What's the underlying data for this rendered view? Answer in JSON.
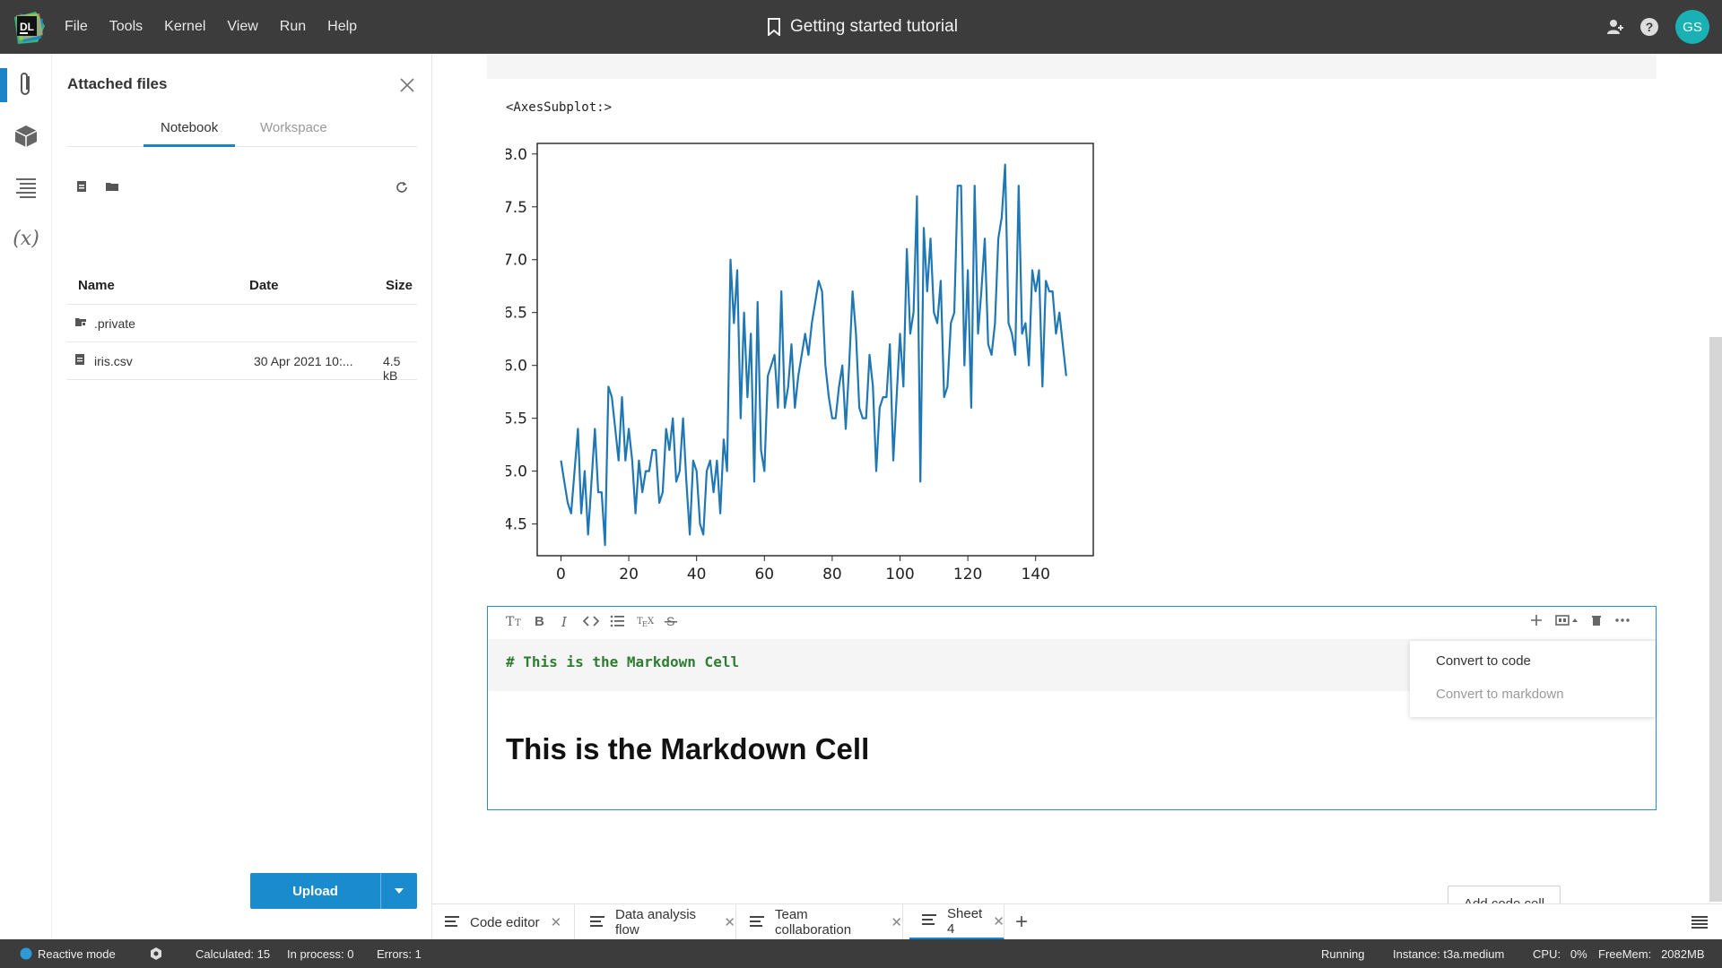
{
  "menu": [
    "File",
    "Tools",
    "Kernel",
    "View",
    "Run",
    "Help"
  ],
  "logo_text": "DL",
  "window_title": "Getting started tutorial",
  "user_initials": "GS",
  "files_panel": {
    "title": "Attached files",
    "tabs": [
      "Notebook",
      "Workspace"
    ],
    "columns": {
      "name": "Name",
      "date": "Date",
      "size": "Size"
    },
    "rows": [
      {
        "name": ".private",
        "date": "",
        "size": ""
      },
      {
        "name": "iris.csv",
        "date": "30 Apr 2021 10:...",
        "size": "4.5 kB"
      }
    ],
    "upload_label": "Upload"
  },
  "output_text": "<AxesSubplot:>",
  "chart_data": {
    "type": "line",
    "title": "",
    "xlabel": "",
    "ylabel": "",
    "xlim": [
      -7,
      157
    ],
    "ylim": [
      4.2,
      8.1
    ],
    "x_ticks": [
      0,
      20,
      40,
      60,
      80,
      100,
      120,
      140
    ],
    "y_ticks": [
      4.5,
      5.0,
      5.5,
      6.0,
      6.5,
      7.0,
      7.5,
      8.0
    ],
    "series": [
      {
        "color": "#1f77b4",
        "values": [
          5.1,
          4.9,
          4.7,
          4.6,
          5.0,
          5.4,
          4.6,
          5.0,
          4.4,
          4.9,
          5.4,
          4.8,
          4.8,
          4.3,
          5.8,
          5.7,
          5.4,
          5.1,
          5.7,
          5.1,
          5.4,
          5.1,
          4.6,
          5.1,
          4.8,
          5.0,
          5.0,
          5.2,
          5.2,
          4.7,
          4.8,
          5.4,
          5.2,
          5.5,
          4.9,
          5.0,
          5.5,
          4.9,
          4.4,
          5.1,
          5.0,
          4.5,
          4.4,
          5.0,
          5.1,
          4.8,
          5.1,
          4.6,
          5.3,
          5.0,
          7.0,
          6.4,
          6.9,
          5.5,
          6.5,
          5.7,
          6.3,
          4.9,
          6.6,
          5.2,
          5.0,
          5.9,
          6.0,
          6.1,
          5.6,
          6.7,
          5.6,
          5.8,
          6.2,
          5.6,
          5.9,
          6.1,
          6.3,
          6.1,
          6.4,
          6.6,
          6.8,
          6.7,
          6.0,
          5.7,
          5.5,
          5.5,
          5.8,
          6.0,
          5.4,
          6.0,
          6.7,
          6.3,
          5.6,
          5.5,
          5.5,
          6.1,
          5.8,
          5.0,
          5.6,
          5.7,
          5.7,
          6.2,
          5.1,
          5.7,
          6.3,
          5.8,
          7.1,
          6.3,
          6.5,
          7.6,
          4.9,
          7.3,
          6.7,
          7.2,
          6.5,
          6.4,
          6.8,
          5.7,
          5.8,
          6.4,
          6.5,
          7.7,
          7.7,
          6.0,
          6.9,
          5.6,
          7.7,
          6.3,
          6.7,
          7.2,
          6.2,
          6.1,
          6.4,
          7.2,
          7.4,
          7.9,
          6.4,
          6.3,
          6.1,
          7.7,
          6.3,
          6.4,
          6.0,
          6.9,
          6.7,
          6.9,
          5.8,
          6.8,
          6.7,
          6.7,
          6.3,
          6.5,
          6.2,
          5.9
        ]
      }
    ]
  },
  "md_cell": {
    "source": "# This is the Markdown Cell",
    "rendered": "This is the Markdown Cell"
  },
  "context_menu": {
    "convert_code": "Convert to code",
    "convert_markdown": "Convert to markdown"
  },
  "add_code_cell": "Add code cell",
  "sheet_tabs": [
    "Code editor",
    "Data analysis flow",
    "Team collaboration",
    "Sheet 4"
  ],
  "status": {
    "reactive": "Reactive mode",
    "calculated": "Calculated: 15",
    "in_process": "In process: 0",
    "errors": "Errors: 1",
    "running": "Running",
    "instance": "Instance: t3a.medium",
    "cpu": "CPU:   0%",
    "freemem": "FreeMem:   2082MB"
  }
}
